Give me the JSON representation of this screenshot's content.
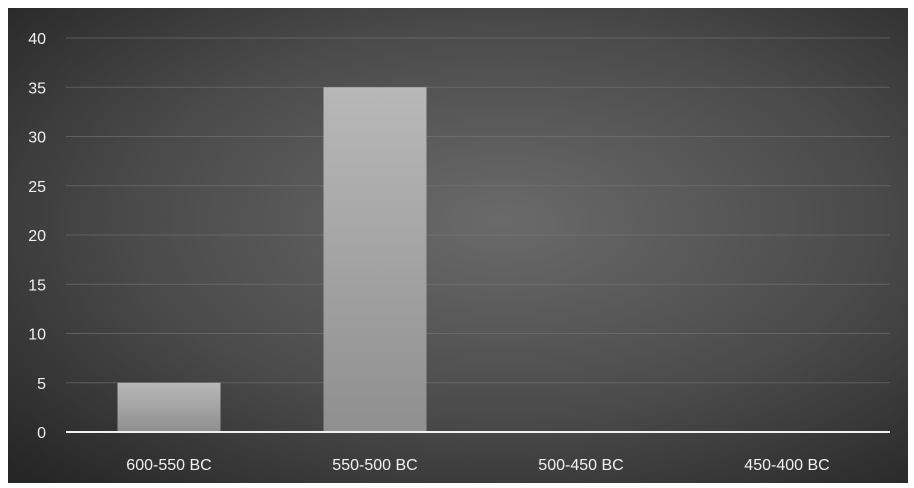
{
  "chart_data": {
    "type": "bar",
    "categories": [
      "600-550 BC",
      "550-500 BC",
      "500-450 BC",
      "450-400 BC"
    ],
    "values": [
      5,
      35,
      0,
      0
    ],
    "ylim": [
      0,
      40
    ],
    "yticks": [
      0,
      5,
      10,
      15,
      20,
      25,
      30,
      35,
      40
    ],
    "grid": true,
    "legend": "none",
    "background_color": "#3c3c3c",
    "bar_color": "#a9a9a9"
  }
}
